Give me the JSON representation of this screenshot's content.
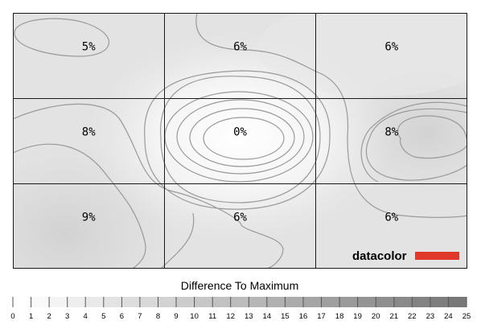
{
  "chart_data": {
    "type": "heatmap",
    "grid": {
      "rows": 3,
      "cols": 3
    },
    "values": [
      [
        "5%",
        "6%",
        "6%"
      ],
      [
        "8%",
        "0%",
        "8%"
      ],
      [
        "9%",
        "6%",
        "6%"
      ]
    ],
    "scale": {
      "title": "Difference To Maximum",
      "min": 0,
      "max": 25,
      "labels": [
        "0",
        "1",
        "2",
        "3",
        "4",
        "5",
        "6",
        "7",
        "8",
        "9",
        "10",
        "11",
        "12",
        "13",
        "14",
        "15",
        "16",
        "17",
        "18",
        "19",
        "20",
        "21",
        "22",
        "23",
        "24",
        "25"
      ]
    },
    "brand": {
      "logo_text": "datacolor",
      "logo_color": "#e0392b"
    }
  }
}
